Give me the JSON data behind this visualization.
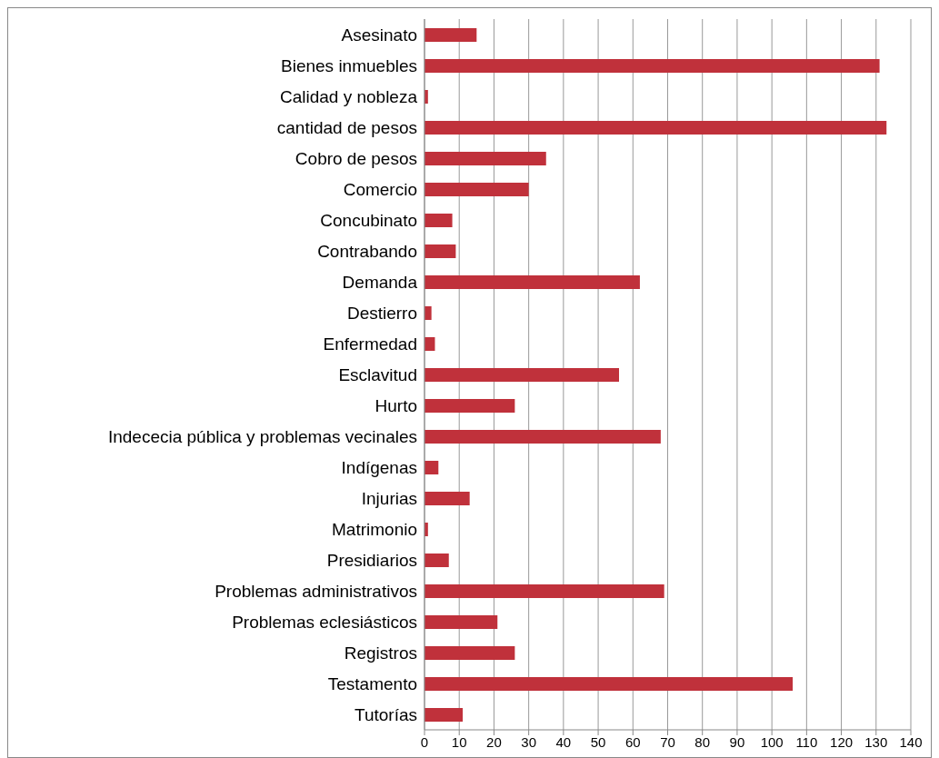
{
  "chart_data": {
    "type": "bar",
    "orientation": "horizontal",
    "categories": [
      "Asesinato",
      "Bienes inmuebles",
      "Calidad y nobleza",
      "cantidad de pesos",
      "Cobro de pesos",
      "Comercio",
      "Concubinato",
      "Contrabando",
      "Demanda",
      "Destierro",
      "Enfermedad",
      "Esclavitud",
      "Hurto",
      "Indececia pública y problemas vecinales",
      "Indígenas",
      "Injurias",
      "Matrimonio",
      "Presidiarios",
      "Problemas administrativos",
      "Problemas eclesiásticos",
      "Registros",
      "Testamento",
      "Tutorías"
    ],
    "values": [
      15,
      131,
      1,
      133,
      35,
      30,
      8,
      9,
      62,
      2,
      3,
      56,
      26,
      68,
      4,
      13,
      1,
      7,
      69,
      21,
      26,
      106,
      11
    ],
    "color": "#c0313b",
    "xlim": [
      0,
      140
    ],
    "xticks": [
      0,
      10,
      20,
      30,
      40,
      50,
      60,
      70,
      80,
      90,
      100,
      110,
      120,
      130,
      140
    ],
    "grid": "x"
  }
}
